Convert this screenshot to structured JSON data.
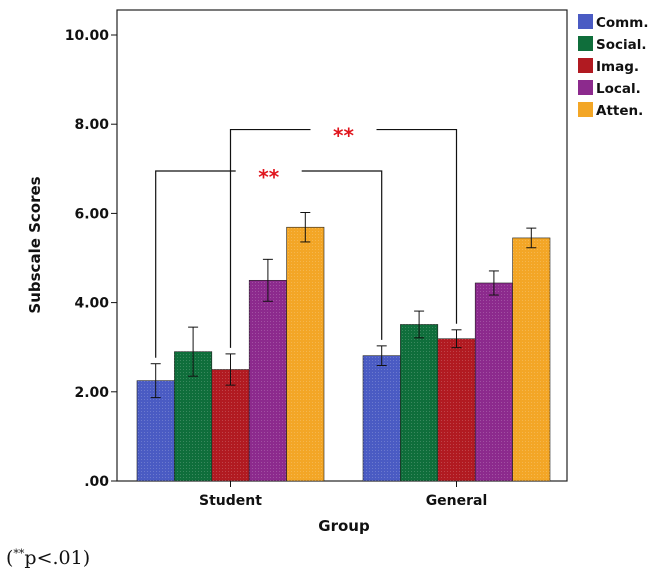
{
  "chart_data": {
    "type": "bar",
    "categories": [
      "Student",
      "General"
    ],
    "series": [
      {
        "name": "Comm.",
        "color": "#4a5bc3",
        "values": [
          2.25,
          2.81
        ],
        "error": [
          0.38,
          0.22
        ]
      },
      {
        "name": "Social.",
        "color": "#0f6e3b",
        "values": [
          2.9,
          3.51
        ],
        "error": [
          0.55,
          0.3
        ]
      },
      {
        "name": "Imag.",
        "color": "#b11a21",
        "values": [
          2.5,
          3.19
        ],
        "error": [
          0.35,
          0.2
        ]
      },
      {
        "name": "Local.",
        "color": "#8c2a8d",
        "values": [
          4.5,
          4.44
        ],
        "error": [
          0.47,
          0.27
        ]
      },
      {
        "name": "Atten.",
        "color": "#f3a626",
        "values": [
          5.69,
          5.45
        ],
        "error": [
          0.33,
          0.22
        ]
      }
    ],
    "xlabel": "Group",
    "ylabel": "Subscale Scores",
    "ylim": [
      0,
      10.5
    ],
    "yticks": [
      0,
      2,
      4,
      6,
      8,
      10
    ],
    "ytick_labels": [
      ".00",
      "2.00",
      "4.00",
      "6.00",
      "8.00",
      "10.00"
    ],
    "grid": false,
    "legend_position": "top-right",
    "annotations": [
      {
        "text": "**",
        "from": {
          "category": "Student",
          "series": "Comm."
        },
        "to": {
          "category": "General",
          "series": "Comm."
        },
        "bracket_y": 6.95
      },
      {
        "text": "**",
        "from": {
          "category": "Student",
          "series": "Imag."
        },
        "to": {
          "category": "General",
          "series": "Imag."
        },
        "bracket_y": 7.88
      }
    ]
  },
  "footnote": {
    "open": "(",
    "mark": "**",
    "text": "p<.01)"
  }
}
